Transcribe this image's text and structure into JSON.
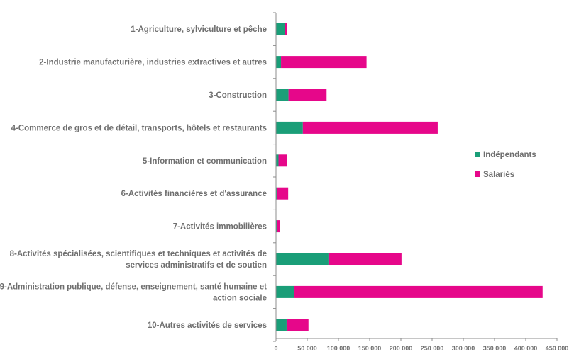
{
  "chart_data": {
    "type": "bar",
    "orientation": "horizontal",
    "stacked": true,
    "title": "",
    "xlabel": "",
    "ylabel": "",
    "xlim": [
      0,
      450000
    ],
    "x_ticks": [
      0,
      50000,
      100000,
      150000,
      200000,
      250000,
      300000,
      350000,
      400000,
      450000
    ],
    "x_tick_labels": [
      "0",
      "50 000",
      "100 000",
      "150 000",
      "200 000",
      "250 000",
      "300 000",
      "350 000",
      "400 000",
      "450 000"
    ],
    "grid": false,
    "legend_position": "right",
    "categories": [
      [
        "1-Agriculture, sylviculture et pêche"
      ],
      [
        "2-Industrie manufacturière, industries extractives et autres"
      ],
      [
        "3-Construction"
      ],
      [
        "4-Commerce de gros et de détail, transports, hôtels et restaurants"
      ],
      [
        "5-Information et communication"
      ],
      [
        "6-Activités financières et d'assurance"
      ],
      [
        "7-Activités immobilières"
      ],
      [
        "8-Activités spécialisées, scientifiques et techniques et activités de",
        "services administratifs et de soutien"
      ],
      [
        "9-Administration publique, défense, enseignement, santé humaine et",
        "action sociale"
      ],
      [
        "10-Autres activités de services"
      ]
    ],
    "series": [
      {
        "name": "Indépendants",
        "color": "#1a9e78",
        "values": [
          14000,
          8000,
          20000,
          43000,
          4000,
          1500,
          1500,
          84000,
          29000,
          17000
        ]
      },
      {
        "name": "Salariés",
        "color": "#e6078a",
        "values": [
          4000,
          137000,
          61000,
          216000,
          14000,
          18000,
          5000,
          117000,
          398000,
          35000
        ]
      }
    ]
  }
}
